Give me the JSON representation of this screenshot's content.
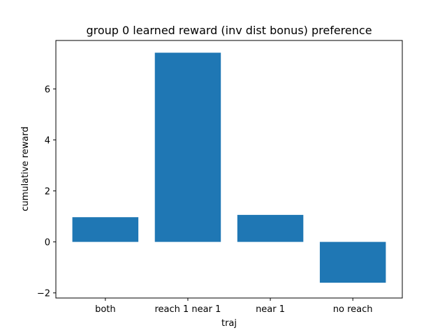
{
  "chart_data": {
    "type": "bar",
    "title": "group 0 learned reward (inv dist bonus) preference",
    "xlabel": "traj",
    "ylabel": "cumulative reward",
    "categories": [
      "both",
      "reach 1 near 1",
      "near 1",
      "no reach"
    ],
    "values": [
      0.97,
      7.42,
      1.06,
      -1.6
    ],
    "ylim": [
      -2.2,
      7.9
    ],
    "yticks": [
      -2,
      0,
      2,
      4,
      6
    ],
    "ytick_labels": [
      "−2",
      "0",
      "2",
      "4",
      "6"
    ],
    "grid": false,
    "legend": "none",
    "bar_color": "#1f77b4"
  }
}
